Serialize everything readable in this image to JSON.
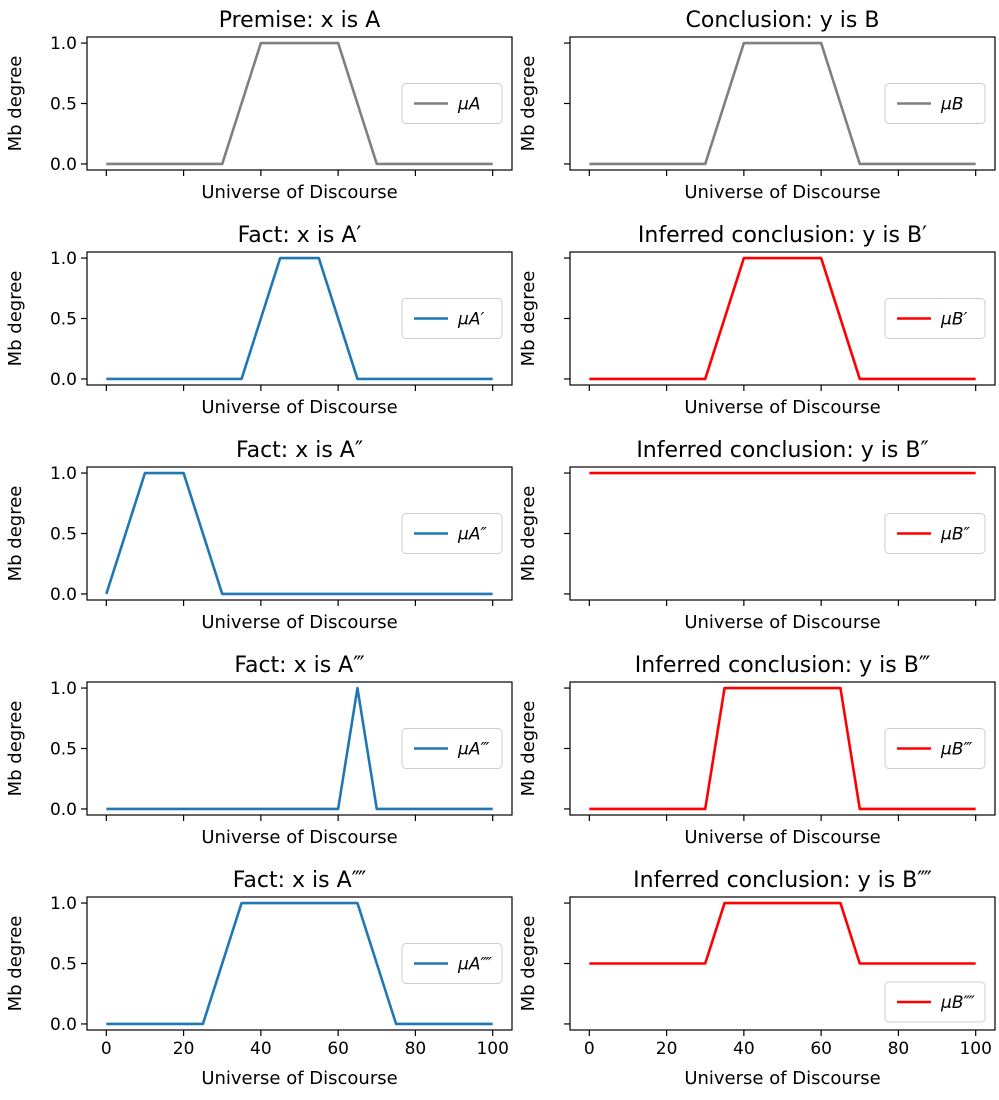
{
  "chart_data": [
    {
      "type": "line",
      "title": "Premise: x is A",
      "xlabel": "Universe of Discourse",
      "ylabel": "Mb degree",
      "xlim": [
        0,
        100
      ],
      "ylim": [
        0,
        1
      ],
      "xticks": [
        0,
        20,
        40,
        60,
        80,
        100
      ],
      "yticks": [
        0.0,
        0.5,
        1.0
      ],
      "legend": "center-right",
      "series": [
        {
          "name": "μA",
          "color": "#808080",
          "x": [
            0,
            30,
            40,
            60,
            70,
            100
          ],
          "y": [
            0,
            0,
            1,
            1,
            0,
            0
          ]
        }
      ]
    },
    {
      "type": "line",
      "title": "Conclusion: y is B",
      "xlabel": "Universe of Discourse",
      "ylabel": "Mb degree",
      "xlim": [
        0,
        100
      ],
      "ylim": [
        0,
        1
      ],
      "xticks": [
        0,
        20,
        40,
        60,
        80,
        100
      ],
      "legend": "center-right",
      "series": [
        {
          "name": "μB",
          "color": "#808080",
          "x": [
            0,
            30,
            40,
            60,
            70,
            100
          ],
          "y": [
            0,
            0,
            1,
            1,
            0,
            0
          ]
        }
      ]
    },
    {
      "type": "line",
      "title": "Fact: x is A′",
      "xlabel": "Universe of Discourse",
      "ylabel": "Mb degree",
      "xlim": [
        0,
        100
      ],
      "ylim": [
        0,
        1
      ],
      "xticks": [
        0,
        20,
        40,
        60,
        80,
        100
      ],
      "yticks": [
        0.0,
        0.5,
        1.0
      ],
      "legend": "center-right",
      "series": [
        {
          "name": "μA′",
          "color": "#1f77b4",
          "x": [
            0,
            35,
            45,
            55,
            65,
            100
          ],
          "y": [
            0,
            0,
            1,
            1,
            0,
            0
          ]
        }
      ]
    },
    {
      "type": "line",
      "title": "Inferred conclusion: y is B′",
      "xlabel": "Universe of Discourse",
      "ylabel": "Mb degree",
      "xlim": [
        0,
        100
      ],
      "ylim": [
        0,
        1
      ],
      "xticks": [
        0,
        20,
        40,
        60,
        80,
        100
      ],
      "legend": "center-right",
      "series": [
        {
          "name": "μB′",
          "color": "#ff0000",
          "x": [
            0,
            30,
            40,
            60,
            70,
            100
          ],
          "y": [
            0,
            0,
            1,
            1,
            0,
            0
          ]
        }
      ]
    },
    {
      "type": "line",
      "title": "Fact: x is A″",
      "xlabel": "Universe of Discourse",
      "ylabel": "Mb degree",
      "xlim": [
        0,
        100
      ],
      "ylim": [
        0,
        1
      ],
      "xticks": [
        0,
        20,
        40,
        60,
        80,
        100
      ],
      "yticks": [
        0.0,
        0.5,
        1.0
      ],
      "legend": "center-right",
      "series": [
        {
          "name": "μA″",
          "color": "#1f77b4",
          "x": [
            0,
            10,
            20,
            30,
            100
          ],
          "y": [
            0,
            1,
            1,
            0,
            0
          ]
        }
      ]
    },
    {
      "type": "line",
      "title": "Inferred conclusion: y is B″",
      "xlabel": "Universe of Discourse",
      "ylabel": "Mb degree",
      "xlim": [
        0,
        100
      ],
      "ylim": [
        0,
        1
      ],
      "xticks": [
        0,
        20,
        40,
        60,
        80,
        100
      ],
      "legend": "center-right",
      "series": [
        {
          "name": "μB″",
          "color": "#ff0000",
          "x": [
            0,
            100
          ],
          "y": [
            1,
            1
          ]
        }
      ]
    },
    {
      "type": "line",
      "title": "Fact: x is A‴",
      "xlabel": "Universe of Discourse",
      "ylabel": "Mb degree",
      "xlim": [
        0,
        100
      ],
      "ylim": [
        0,
        1
      ],
      "xticks": [
        0,
        20,
        40,
        60,
        80,
        100
      ],
      "yticks": [
        0.0,
        0.5,
        1.0
      ],
      "legend": "center-right",
      "series": [
        {
          "name": "μA‴",
          "color": "#1f77b4",
          "x": [
            0,
            60,
            65,
            70,
            100
          ],
          "y": [
            0,
            0,
            1,
            0,
            0
          ]
        }
      ]
    },
    {
      "type": "line",
      "title": "Inferred conclusion: y is B‴",
      "xlabel": "Universe of Discourse",
      "ylabel": "Mb degree",
      "xlim": [
        0,
        100
      ],
      "ylim": [
        0,
        1
      ],
      "xticks": [
        0,
        20,
        40,
        60,
        80,
        100
      ],
      "legend": "center-right",
      "series": [
        {
          "name": "μB‴",
          "color": "#ff0000",
          "x": [
            0,
            30,
            35,
            65,
            70,
            100
          ],
          "y": [
            0,
            0,
            1,
            1,
            0,
            0
          ]
        }
      ]
    },
    {
      "type": "line",
      "title": "Fact: x is A⁗",
      "xlabel": "Universe of Discourse",
      "ylabel": "Mb degree",
      "xlim": [
        0,
        100
      ],
      "ylim": [
        0,
        1
      ],
      "xticks": [
        0,
        20,
        40,
        60,
        80,
        100
      ],
      "yticks": [
        0.0,
        0.5,
        1.0
      ],
      "legend": "center-right",
      "series": [
        {
          "name": "μA⁗",
          "color": "#1f77b4",
          "x": [
            0,
            25,
            35,
            65,
            75,
            100
          ],
          "y": [
            0,
            0,
            1,
            1,
            0,
            0
          ]
        }
      ]
    },
    {
      "type": "line",
      "title": "Inferred conclusion: y is B⁗",
      "xlabel": "Universe of Discourse",
      "ylabel": "Mb degree",
      "xlim": [
        0,
        100
      ],
      "ylim": [
        0,
        1
      ],
      "xticks": [
        0,
        20,
        40,
        60,
        80,
        100
      ],
      "legend": "lower-right",
      "series": [
        {
          "name": "μB⁗",
          "color": "#ff0000",
          "x": [
            0,
            30,
            35,
            65,
            70,
            100
          ],
          "y": [
            0.5,
            0.5,
            1,
            1,
            0.5,
            0.5
          ]
        }
      ]
    }
  ]
}
